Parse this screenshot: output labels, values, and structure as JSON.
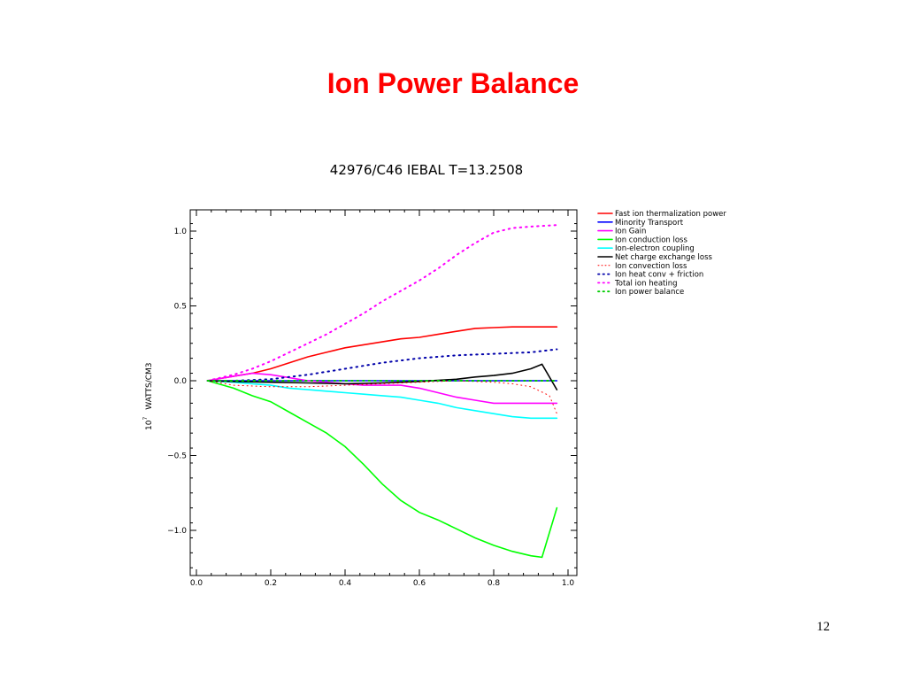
{
  "slide": {
    "title": "Ion Power Balance",
    "page_number": "12"
  },
  "chart_data": {
    "type": "line",
    "title": "42976/C46 IEBAL T=13.2508",
    "xlabel": "",
    "ylabel": "10^7 WATTS/CM3",
    "ylabel_parts": {
      "prefix": "10",
      "exponent": "7",
      "suffix": "WATTS/CM3"
    },
    "xlim": [
      0.0,
      1.0
    ],
    "ylim": [
      -1.3,
      1.15
    ],
    "x_ticks": [
      0.0,
      0.2,
      0.4,
      0.6,
      0.8,
      1.0
    ],
    "x_tick_labels": [
      "0.0",
      "0.2",
      "0.4",
      "0.6",
      "0.8",
      "1.0"
    ],
    "y_ticks": [
      -1.0,
      -0.5,
      0.0,
      0.5,
      1.0
    ],
    "y_tick_labels": [
      "−1.0",
      "−0.5",
      "0.0",
      "0.5",
      "1.0"
    ],
    "grid": false,
    "legend_position": "outside-top-right",
    "series": [
      {
        "name": "Fast ion thermalization power",
        "color": "#ff0000",
        "style": "solid",
        "x": [
          0.03,
          0.1,
          0.15,
          0.2,
          0.25,
          0.3,
          0.35,
          0.4,
          0.45,
          0.5,
          0.55,
          0.6,
          0.65,
          0.7,
          0.75,
          0.8,
          0.85,
          0.9,
          0.97
        ],
        "y": [
          0.0,
          0.03,
          0.05,
          0.08,
          0.12,
          0.16,
          0.19,
          0.22,
          0.24,
          0.26,
          0.28,
          0.29,
          0.31,
          0.33,
          0.35,
          0.355,
          0.36,
          0.36,
          0.36
        ]
      },
      {
        "name": "Minority Transport",
        "color": "#0000ff",
        "style": "solid",
        "x": [
          0.03,
          0.2,
          0.4,
          0.6,
          0.8,
          0.97
        ],
        "y": [
          0.0,
          0.0,
          0.0,
          0.0,
          0.0,
          0.0
        ]
      },
      {
        "name": "Ion Gain",
        "color": "#ff00ff",
        "style": "solid",
        "x": [
          0.03,
          0.1,
          0.15,
          0.2,
          0.25,
          0.3,
          0.35,
          0.4,
          0.45,
          0.5,
          0.55,
          0.6,
          0.65,
          0.7,
          0.75,
          0.8,
          0.85,
          0.9,
          0.97
        ],
        "y": [
          0.0,
          0.03,
          0.05,
          0.04,
          0.02,
          0.0,
          -0.01,
          -0.02,
          -0.03,
          -0.03,
          -0.03,
          -0.05,
          -0.08,
          -0.11,
          -0.13,
          -0.15,
          -0.15,
          -0.15,
          -0.15
        ]
      },
      {
        "name": "Ion conduction loss",
        "color": "#00ff00",
        "style": "solid",
        "x": [
          0.03,
          0.1,
          0.15,
          0.2,
          0.25,
          0.3,
          0.35,
          0.4,
          0.45,
          0.5,
          0.55,
          0.6,
          0.65,
          0.7,
          0.75,
          0.8,
          0.85,
          0.9,
          0.93,
          0.97
        ],
        "y": [
          0.0,
          -0.05,
          -0.1,
          -0.14,
          -0.21,
          -0.28,
          -0.35,
          -0.44,
          -0.56,
          -0.69,
          -0.8,
          -0.88,
          -0.93,
          -0.99,
          -1.05,
          -1.1,
          -1.14,
          -1.17,
          -1.18,
          -0.85
        ]
      },
      {
        "name": "Ion-electron coupling",
        "color": "#00ffff",
        "style": "solid",
        "x": [
          0.03,
          0.1,
          0.15,
          0.2,
          0.25,
          0.3,
          0.35,
          0.4,
          0.45,
          0.5,
          0.55,
          0.6,
          0.65,
          0.7,
          0.75,
          0.8,
          0.85,
          0.9,
          0.97
        ],
        "y": [
          0.0,
          -0.01,
          -0.02,
          -0.03,
          -0.05,
          -0.06,
          -0.07,
          -0.08,
          -0.09,
          -0.1,
          -0.11,
          -0.13,
          -0.15,
          -0.18,
          -0.2,
          -0.22,
          -0.24,
          -0.25,
          -0.25
        ]
      },
      {
        "name": "Net charge exchange loss",
        "color": "#000000",
        "style": "solid",
        "x": [
          0.03,
          0.1,
          0.2,
          0.3,
          0.4,
          0.5,
          0.6,
          0.7,
          0.75,
          0.8,
          0.85,
          0.9,
          0.93,
          0.97
        ],
        "y": [
          0.0,
          -0.005,
          -0.01,
          -0.015,
          -0.02,
          -0.015,
          -0.005,
          0.01,
          0.025,
          0.035,
          0.05,
          0.08,
          0.11,
          -0.06
        ]
      },
      {
        "name": "Ion convection loss",
        "color": "#ff0000",
        "style": "dotted-fine",
        "x": [
          0.03,
          0.1,
          0.2,
          0.3,
          0.4,
          0.5,
          0.6,
          0.7,
          0.8,
          0.85,
          0.9,
          0.95,
          0.97
        ],
        "y": [
          0.0,
          -0.03,
          -0.04,
          -0.04,
          -0.03,
          -0.02,
          -0.01,
          0.0,
          -0.01,
          -0.02,
          -0.04,
          -0.1,
          -0.22
        ]
      },
      {
        "name": "Ion heat conv + friction",
        "color": "#0000aa",
        "style": "dotted",
        "x": [
          0.03,
          0.1,
          0.2,
          0.3,
          0.4,
          0.5,
          0.6,
          0.7,
          0.8,
          0.9,
          0.97
        ],
        "y": [
          0.0,
          0.0,
          0.01,
          0.04,
          0.08,
          0.12,
          0.15,
          0.17,
          0.18,
          0.19,
          0.21
        ]
      },
      {
        "name": "Total ion heating",
        "color": "#ff00ff",
        "style": "dotted",
        "x": [
          0.03,
          0.1,
          0.15,
          0.2,
          0.25,
          0.3,
          0.35,
          0.4,
          0.45,
          0.5,
          0.55,
          0.6,
          0.65,
          0.7,
          0.75,
          0.8,
          0.85,
          0.9,
          0.97
        ],
        "y": [
          0.0,
          0.04,
          0.08,
          0.13,
          0.19,
          0.25,
          0.31,
          0.38,
          0.45,
          0.53,
          0.6,
          0.67,
          0.75,
          0.84,
          0.92,
          0.99,
          1.02,
          1.03,
          1.04
        ]
      },
      {
        "name": "Ion power balance",
        "color": "#00cc00",
        "style": "dotted",
        "x": [
          0.03,
          0.2,
          0.4,
          0.6,
          0.8,
          0.97
        ],
        "y": [
          0.0,
          0.0,
          0.0,
          0.0,
          0.0,
          0.0
        ]
      }
    ]
  }
}
